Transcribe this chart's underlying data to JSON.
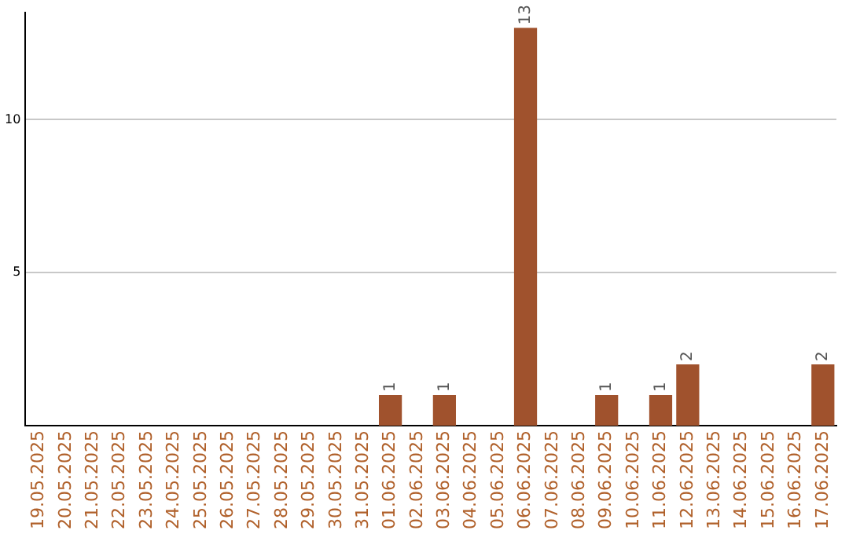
{
  "chart_data": {
    "type": "bar",
    "categories": [
      "19.05.2025",
      "20.05.2025",
      "21.05.2025",
      "22.05.2025",
      "23.05.2025",
      "24.05.2025",
      "25.05.2025",
      "26.05.2025",
      "27.05.2025",
      "28.05.2025",
      "29.05.2025",
      "30.05.2025",
      "31.05.2025",
      "01.06.2025",
      "02.06.2025",
      "03.06.2025",
      "04.06.2025",
      "05.06.2025",
      "06.06.2025",
      "07.06.2025",
      "08.06.2025",
      "09.06.2025",
      "10.06.2025",
      "11.06.2025",
      "12.06.2025",
      "13.06.2025",
      "14.06.2025",
      "15.06.2025",
      "16.06.2025",
      "17.06.2025"
    ],
    "values": [
      0,
      0,
      0,
      0,
      0,
      0,
      0,
      0,
      0,
      0,
      0,
      0,
      0,
      1,
      0,
      1,
      0,
      0,
      13,
      0,
      0,
      1,
      0,
      1,
      2,
      0,
      0,
      0,
      0,
      2
    ],
    "value_labels": [
      null,
      null,
      null,
      null,
      null,
      null,
      null,
      null,
      null,
      null,
      null,
      null,
      null,
      "1",
      null,
      "1",
      null,
      null,
      "13",
      null,
      null,
      "1",
      null,
      "1",
      "2",
      null,
      null,
      null,
      null,
      "2"
    ],
    "color": "#a0522d",
    "ylim": [
      0,
      13.5
    ],
    "yticks": [
      5,
      10
    ],
    "grid": "y",
    "legend": false
  }
}
